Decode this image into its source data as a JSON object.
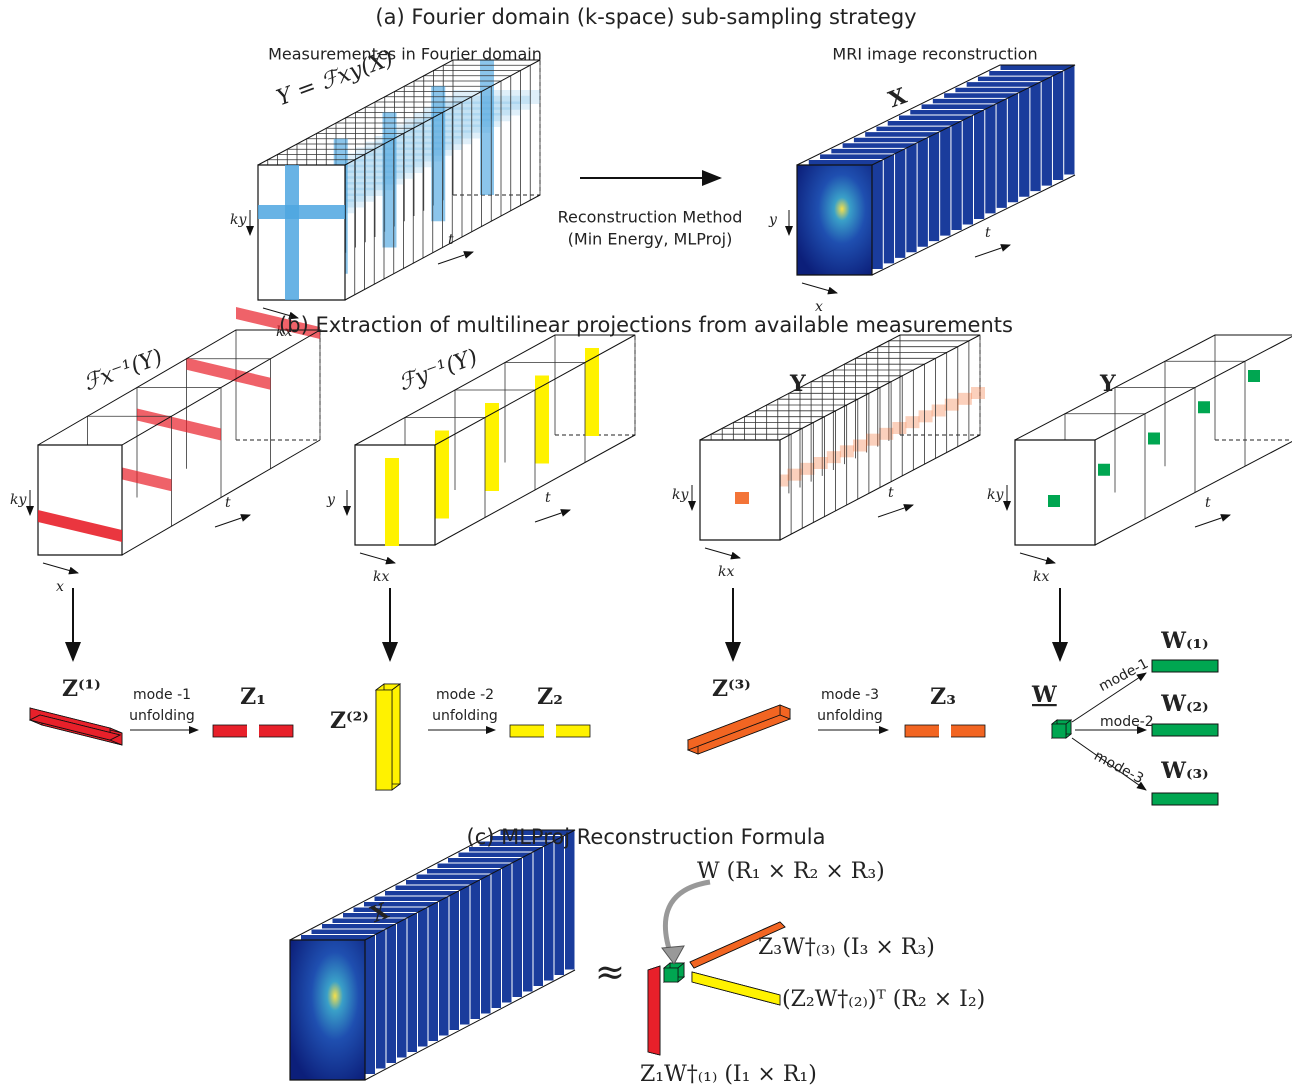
{
  "panel_a": {
    "title": "(a) Fourier domain (k-space) sub-sampling strategy",
    "left_caption": "Measurementes in Fourier domain",
    "right_caption": "MRI image reconstruction",
    "left_formula": "Y = ℱxy(X)",
    "right_symbol": "X",
    "method_line1": "Reconstruction Method",
    "method_line2": "(Min Energy, MLProj)"
  },
  "axis_labels": {
    "ky": "ky",
    "kx": "kx",
    "t": "t",
    "x": "x",
    "y": "y"
  },
  "panel_b": {
    "title": "(b) Extraction of multilinear projections from available measurements",
    "cube_labels": [
      "ℱx⁻¹(Y)",
      "ℱy⁻¹(Y)",
      "Y",
      "Y"
    ],
    "unfold_1": {
      "tensor": "Z⁽¹⁾",
      "mode": "mode -1",
      "word": "unfolding",
      "matrix": "Z₁"
    },
    "unfold_2": {
      "tensor": "Z⁽²⁾",
      "mode": "mode -2",
      "word": "unfolding",
      "matrix": "Z₂"
    },
    "unfold_3": {
      "tensor": "Z⁽³⁾",
      "mode": "mode -3",
      "word": "unfolding",
      "matrix": "Z₃"
    },
    "core": {
      "tensor": "W",
      "modes": [
        "mode-1",
        "mode-2",
        "mode-3"
      ],
      "matrices": [
        "W₍₁₎",
        "W₍₂₎",
        "W₍₃₎"
      ]
    }
  },
  "panel_c": {
    "title": "(c) MLProj Reconstruction Formula",
    "symbol": "X",
    "approx": "≈",
    "core_label": "W  (R₁ × R₂ × R₃)",
    "factor_3": "Z₃W†₍₃₎  (I₃ × R₃)",
    "factor_2": "(Z₂W†₍₂₎)ᵀ  (R₂ × I₂)",
    "factor_1": "Z₁W†₍₁₎  (I₁ × R₁)"
  }
}
